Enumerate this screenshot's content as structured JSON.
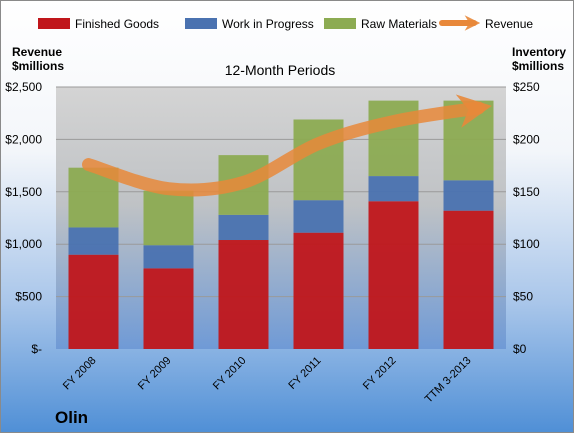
{
  "chart_data": {
    "type": "bar",
    "stacked": true,
    "title": "12-Month Periods",
    "company": "Olin",
    "left_axis": {
      "label_line1": "Revenue",
      "label_line2": "$millions",
      "range": [
        0,
        2500
      ],
      "ticks": [
        {
          "value": 0,
          "label": "$-"
        },
        {
          "value": 500,
          "label": "$500"
        },
        {
          "value": 1000,
          "label": "$1,000"
        },
        {
          "value": 1500,
          "label": "$1,500"
        },
        {
          "value": 2000,
          "label": "$2,000"
        },
        {
          "value": 2500,
          "label": "$2,500"
        }
      ]
    },
    "right_axis": {
      "label_line1": "Inventory",
      "label_line2": "$millions",
      "range": [
        0,
        250
      ],
      "ticks": [
        {
          "value": 0,
          "label": "$0"
        },
        {
          "value": 50,
          "label": "$50"
        },
        {
          "value": 100,
          "label": "$100"
        },
        {
          "value": 150,
          "label": "$150"
        },
        {
          "value": 200,
          "label": "$200"
        },
        {
          "value": 250,
          "label": "$250"
        }
      ]
    },
    "categories": [
      "FY 2008",
      "FY 2009",
      "FY 2010",
      "FY 2011",
      "FY 2012",
      "TTM 3-2013"
    ],
    "series": [
      {
        "name": "Finished Goods",
        "color": "#c0161b",
        "axis": "right",
        "values": [
          90,
          77,
          104,
          111,
          141,
          132
        ]
      },
      {
        "name": "Work in Progress",
        "color": "#4a72b0",
        "axis": "right",
        "values": [
          26,
          22,
          24,
          31,
          24,
          29
        ]
      },
      {
        "name": "Raw Materials",
        "color": "#8cab52",
        "axis": "right",
        "values": [
          57,
          52,
          57,
          77,
          72,
          76
        ]
      }
    ],
    "line_series": {
      "name": "Revenue",
      "color": "#e8883a",
      "axis": "left",
      "values": [
        1760,
        1530,
        1590,
        1960,
        2170,
        2300
      ]
    },
    "grid": true,
    "legend_position": "top"
  }
}
